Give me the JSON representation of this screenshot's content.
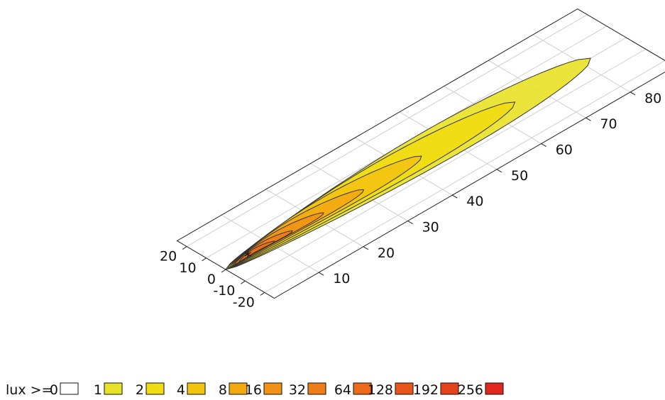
{
  "chart_data": {
    "type": "heatmap",
    "subtype": "isolux-contour-perspective",
    "title": "",
    "xlabel": "",
    "ylabel": "",
    "x_axis": {
      "ticks": [
        10,
        20,
        30,
        40,
        50,
        60,
        70,
        80
      ],
      "labels": [
        "10",
        "20",
        "30",
        "40",
        "50",
        "60",
        "70",
        "80"
      ],
      "range": [
        0,
        90
      ]
    },
    "y_axis": {
      "ticks": [
        -20,
        -10,
        0,
        10,
        20
      ],
      "labels": [
        "-20",
        "-10",
        "0",
        "10",
        "20"
      ],
      "range": [
        -25,
        25
      ]
    },
    "grid": true,
    "marker": "*",
    "legend": {
      "prefix": "lux >=",
      "placement": "bottom-left",
      "entries": [
        {
          "label": "0",
          "lux": 0,
          "color": "#ffffff"
        },
        {
          "label": "1",
          "lux": 1,
          "color": "#e8e22a"
        },
        {
          "label": "2",
          "lux": 2,
          "color": "#f0dc14"
        },
        {
          "label": "4",
          "lux": 4,
          "color": "#f3c311"
        },
        {
          "label": "8",
          "lux": 8,
          "color": "#f3aa12"
        },
        {
          "label": "16",
          "lux": 16,
          "color": "#f19216"
        },
        {
          "label": "32",
          "lux": 32,
          "color": "#ef7d17"
        },
        {
          "label": "64",
          "lux": 64,
          "color": "#ec6a18"
        },
        {
          "label": "128",
          "lux": 128,
          "color": "#e8561a"
        },
        {
          "label": "192",
          "lux": 192,
          "color": "#e4421c"
        },
        {
          "label": "256",
          "lux": 256,
          "color": "#e0281e"
        }
      ]
    },
    "isolux_regions": [
      {
        "lux": 1,
        "start": 0,
        "end": 82,
        "half_width": 11.5,
        "center_offset": 1.0
      },
      {
        "lux": 2,
        "start": 0,
        "end": 65,
        "half_width": 9.0,
        "center_offset": 1.5
      },
      {
        "lux": 4,
        "start": 0.5,
        "end": 44,
        "half_width": 6.5,
        "center_offset": 1.8
      },
      {
        "lux": 8,
        "start": 1.0,
        "end": 31,
        "half_width": 4.5,
        "center_offset": 1.8
      },
      {
        "lux": 16,
        "start": 1.5,
        "end": 22,
        "half_width": 3.0,
        "center_offset": 1.6
      },
      {
        "lux": 32,
        "start": 2.0,
        "end": 15,
        "half_width": 1.9,
        "center_offset": 1.3
      },
      {
        "lux": 64,
        "start": 3.0,
        "end": 11,
        "half_width": 1.2,
        "center_offset": 1.0
      }
    ],
    "max_point": {
      "x": 5,
      "y": 0
    }
  }
}
